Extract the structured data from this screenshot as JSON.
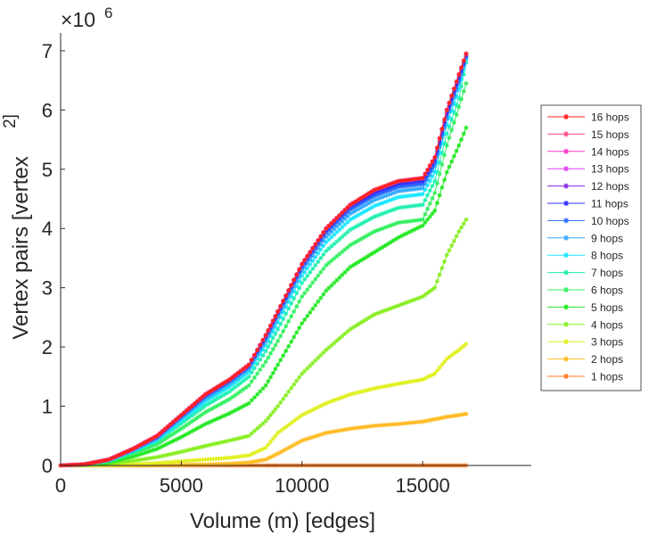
{
  "chart_data": {
    "type": "line",
    "title": "",
    "xlabel": "Volume (m) [edges]",
    "ylabel": "Vertex pairs [vertex",
    "ylabel_superscript": "2]",
    "y_multiplier": "×10",
    "y_multiplier_exp": "6",
    "xlim": [
      0,
      19500
    ],
    "ylim": [
      0,
      7.3
    ],
    "xticks": [
      0,
      5000,
      10000,
      15000
    ],
    "xtick_labels": [
      "0",
      "5000",
      "10000",
      "15000"
    ],
    "yticks": [
      0,
      1,
      2,
      3,
      4,
      5,
      6,
      7
    ],
    "ytick_labels": [
      "0",
      "1",
      "2",
      "3",
      "4",
      "5",
      "6",
      "7"
    ],
    "legend_position": "right",
    "x": [
      0,
      1000,
      2000,
      3000,
      4000,
      5000,
      6000,
      7000,
      7800,
      8500,
      9000,
      10000,
      11000,
      12000,
      13000,
      14000,
      15000,
      15500,
      16000,
      16500,
      16800
    ],
    "series": [
      {
        "name": "16 hops",
        "color": "#ff2020",
        "values": [
          0,
          0.02,
          0.1,
          0.28,
          0.5,
          0.85,
          1.2,
          1.45,
          1.7,
          2.2,
          2.6,
          3.4,
          4.0,
          4.4,
          4.65,
          4.8,
          4.85,
          5.2,
          6.0,
          6.6,
          6.95
        ]
      },
      {
        "name": "15 hops",
        "color": "#ff4a8a",
        "values": [
          0,
          0.02,
          0.1,
          0.28,
          0.5,
          0.85,
          1.2,
          1.45,
          1.7,
          2.2,
          2.6,
          3.4,
          4.0,
          4.4,
          4.65,
          4.8,
          4.85,
          5.2,
          6.0,
          6.6,
          6.95
        ]
      },
      {
        "name": "14 hops",
        "color": "#ff33cc",
        "values": [
          0,
          0.02,
          0.1,
          0.28,
          0.5,
          0.85,
          1.2,
          1.45,
          1.7,
          2.2,
          2.6,
          3.4,
          4.0,
          4.4,
          4.65,
          4.8,
          4.85,
          5.2,
          6.0,
          6.6,
          6.95
        ]
      },
      {
        "name": "13 hops",
        "color": "#e040f0",
        "values": [
          0,
          0.02,
          0.1,
          0.28,
          0.5,
          0.85,
          1.2,
          1.45,
          1.7,
          2.2,
          2.6,
          3.4,
          4.0,
          4.4,
          4.65,
          4.8,
          4.85,
          5.2,
          6.0,
          6.6,
          6.95
        ]
      },
      {
        "name": "12 hops",
        "color": "#8a2be2",
        "values": [
          0,
          0.02,
          0.1,
          0.28,
          0.5,
          0.85,
          1.2,
          1.45,
          1.7,
          2.2,
          2.6,
          3.4,
          4.0,
          4.4,
          4.65,
          4.8,
          4.85,
          5.2,
          6.0,
          6.6,
          6.95
        ]
      },
      {
        "name": "11 hops",
        "color": "#3030ff",
        "values": [
          0,
          0.02,
          0.1,
          0.28,
          0.49,
          0.84,
          1.19,
          1.44,
          1.69,
          2.18,
          2.58,
          3.38,
          3.97,
          4.37,
          4.6,
          4.75,
          4.8,
          5.15,
          5.95,
          6.55,
          6.93
        ]
      },
      {
        "name": "10 hops",
        "color": "#2a6cff",
        "values": [
          0,
          0.02,
          0.1,
          0.27,
          0.48,
          0.83,
          1.17,
          1.42,
          1.67,
          2.15,
          2.55,
          3.34,
          3.93,
          4.32,
          4.55,
          4.7,
          4.75,
          5.1,
          5.9,
          6.5,
          6.9
        ]
      },
      {
        "name": "9 hops",
        "color": "#33aaff",
        "values": [
          0,
          0.02,
          0.09,
          0.26,
          0.46,
          0.8,
          1.13,
          1.38,
          1.63,
          2.1,
          2.5,
          3.28,
          3.86,
          4.25,
          4.48,
          4.63,
          4.68,
          5.05,
          5.85,
          6.45,
          6.88
        ]
      },
      {
        "name": "8 hops",
        "color": "#19e8ff",
        "values": [
          0,
          0.02,
          0.09,
          0.25,
          0.44,
          0.76,
          1.08,
          1.33,
          1.58,
          2.03,
          2.42,
          3.2,
          3.77,
          4.15,
          4.38,
          4.53,
          4.58,
          4.95,
          5.75,
          6.35,
          6.85
        ]
      },
      {
        "name": "7 hops",
        "color": "#1ff0b0",
        "values": [
          0,
          0.02,
          0.08,
          0.23,
          0.41,
          0.71,
          1.01,
          1.25,
          1.5,
          1.93,
          2.3,
          3.08,
          3.62,
          3.98,
          4.2,
          4.35,
          4.4,
          4.8,
          5.6,
          6.2,
          6.8
        ]
      },
      {
        "name": "6 hops",
        "color": "#33f060",
        "values": [
          0,
          0.02,
          0.07,
          0.2,
          0.36,
          0.62,
          0.9,
          1.12,
          1.35,
          1.75,
          2.1,
          2.85,
          3.38,
          3.72,
          3.95,
          4.1,
          4.15,
          4.6,
          5.4,
          6.05,
          6.45
        ]
      },
      {
        "name": "5 hops",
        "color": "#22e822",
        "values": [
          0,
          0.01,
          0.05,
          0.15,
          0.28,
          0.48,
          0.7,
          0.88,
          1.05,
          1.35,
          1.7,
          2.4,
          2.95,
          3.35,
          3.6,
          3.85,
          4.05,
          4.3,
          4.95,
          5.4,
          5.7
        ]
      },
      {
        "name": "4 hops",
        "color": "#88ee22",
        "values": [
          0,
          0.01,
          0.03,
          0.08,
          0.14,
          0.23,
          0.33,
          0.42,
          0.5,
          0.75,
          1.0,
          1.55,
          1.95,
          2.3,
          2.55,
          2.7,
          2.85,
          3.0,
          3.55,
          3.95,
          4.15
        ]
      },
      {
        "name": "3 hops",
        "color": "#e0f020",
        "values": [
          0,
          0.005,
          0.01,
          0.02,
          0.04,
          0.07,
          0.1,
          0.13,
          0.17,
          0.3,
          0.55,
          0.85,
          1.05,
          1.2,
          1.3,
          1.38,
          1.45,
          1.55,
          1.8,
          1.95,
          2.05
        ]
      },
      {
        "name": "2 hops",
        "color": "#ffbb22",
        "values": [
          0,
          0,
          0,
          0,
          0.005,
          0.01,
          0.015,
          0.03,
          0.05,
          0.1,
          0.2,
          0.42,
          0.55,
          0.62,
          0.67,
          0.7,
          0.74,
          0.78,
          0.82,
          0.85,
          0.87
        ]
      },
      {
        "name": "1 hops",
        "color": "#ff7a20",
        "values": [
          0,
          0,
          0,
          0,
          0,
          0,
          0,
          0,
          0,
          0,
          0,
          0,
          0,
          0,
          0,
          0,
          0,
          0,
          0,
          0,
          0
        ]
      }
    ]
  }
}
